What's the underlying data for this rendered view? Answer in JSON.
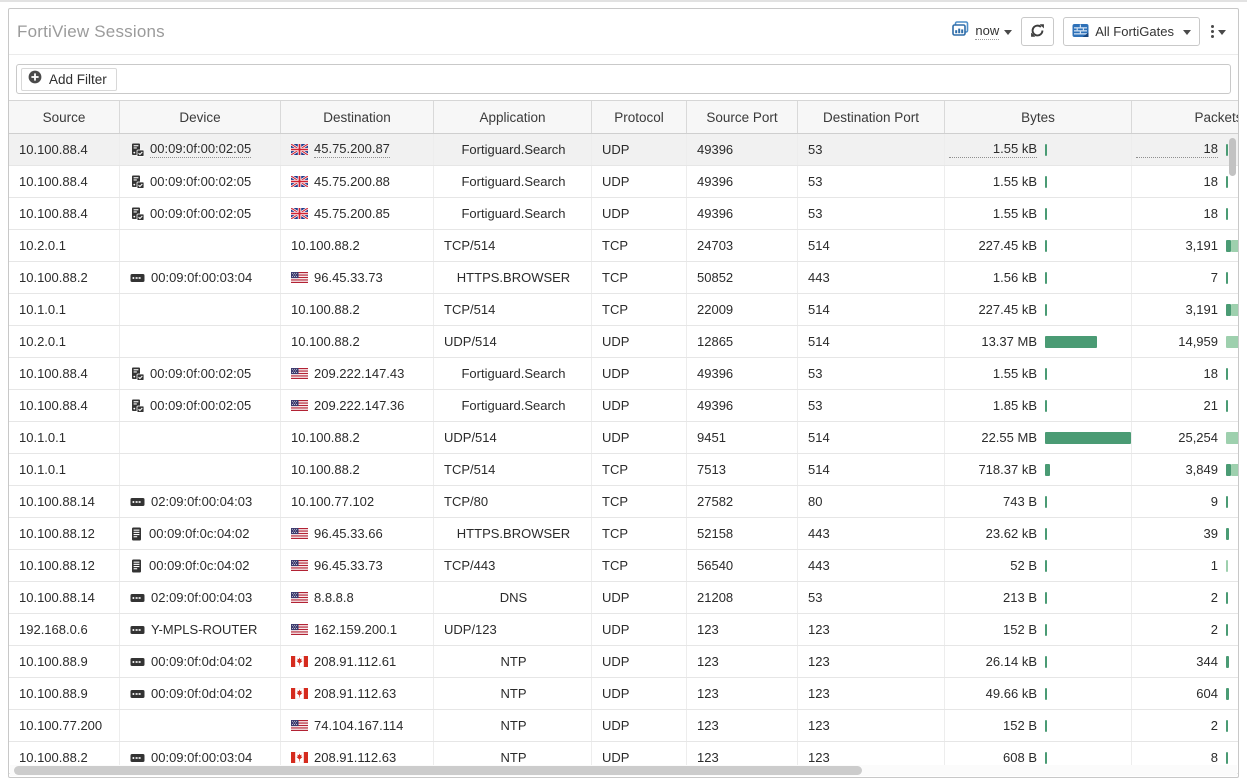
{
  "header": {
    "title": "FortiView Sessions",
    "time_label": "now",
    "fortigate_label": "All FortiGates"
  },
  "filter": {
    "add_label": "Add Filter"
  },
  "colors": {
    "bar_dark_green": "#4a9b74",
    "bar_light_green": "#9ed0ae",
    "accent_blue": "#3a77b8",
    "title_gray": "#9b9b9b"
  },
  "table": {
    "columns": [
      "Source",
      "Device",
      "Destination",
      "Application",
      "Protocol",
      "Source Port",
      "Destination Port",
      "Bytes",
      "Packets"
    ],
    "rows": [
      {
        "source": "10.100.88.4",
        "device_icon": "server-check-icon",
        "device": "00:09:0f:00:02:05",
        "flag": "uk-flag-icon",
        "destination": "45.75.200.87",
        "application": "Fortiguard.Search",
        "app_align": "center",
        "protocol": "UDP",
        "source_port": "49396",
        "dest_port": "53",
        "bytes": "1.55 kB",
        "bytes_bar": 2,
        "packets": "18",
        "packets_bar": {
          "dark": 2,
          "light": 0
        },
        "highlight": true
      },
      {
        "source": "10.100.88.4",
        "device_icon": "server-check-icon",
        "device": "00:09:0f:00:02:05",
        "flag": "uk-flag-icon",
        "destination": "45.75.200.88",
        "application": "Fortiguard.Search",
        "app_align": "center",
        "protocol": "UDP",
        "source_port": "49396",
        "dest_port": "53",
        "bytes": "1.55 kB",
        "bytes_bar": 2,
        "packets": "18",
        "packets_bar": {
          "dark": 2,
          "light": 0
        },
        "highlight": false
      },
      {
        "source": "10.100.88.4",
        "device_icon": "server-check-icon",
        "device": "00:09:0f:00:02:05",
        "flag": "uk-flag-icon",
        "destination": "45.75.200.85",
        "application": "Fortiguard.Search",
        "app_align": "center",
        "protocol": "UDP",
        "source_port": "49396",
        "dest_port": "53",
        "bytes": "1.55 kB",
        "bytes_bar": 2,
        "packets": "18",
        "packets_bar": {
          "dark": 2,
          "light": 0
        },
        "highlight": false
      },
      {
        "source": "10.2.0.1",
        "device_icon": "",
        "device": "",
        "flag": "",
        "destination": "10.100.88.2",
        "application": "TCP/514",
        "app_align": "left",
        "protocol": "TCP",
        "source_port": "24703",
        "dest_port": "514",
        "bytes": "227.45 kB",
        "bytes_bar": 2,
        "packets": "3,191",
        "packets_bar": {
          "dark": 5,
          "light": 9
        },
        "highlight": false
      },
      {
        "source": "10.100.88.2",
        "device_icon": "router-icon",
        "device": "00:09:0f:00:03:04",
        "flag": "us-flag-icon",
        "destination": "96.45.33.73",
        "application": "HTTPS.BROWSER",
        "app_align": "center",
        "protocol": "TCP",
        "source_port": "50852",
        "dest_port": "443",
        "bytes": "1.56 kB",
        "bytes_bar": 2,
        "packets": "7",
        "packets_bar": {
          "dark": 2,
          "light": 0
        },
        "highlight": false
      },
      {
        "source": "10.1.0.1",
        "device_icon": "",
        "device": "",
        "flag": "",
        "destination": "10.100.88.2",
        "application": "TCP/514",
        "app_align": "left",
        "protocol": "TCP",
        "source_port": "22009",
        "dest_port": "514",
        "bytes": "227.45 kB",
        "bytes_bar": 2,
        "packets": "3,191",
        "packets_bar": {
          "dark": 5,
          "light": 9
        },
        "highlight": false
      },
      {
        "source": "10.2.0.1",
        "device_icon": "",
        "device": "",
        "flag": "",
        "destination": "10.100.88.2",
        "application": "UDP/514",
        "app_align": "left",
        "protocol": "UDP",
        "source_port": "12865",
        "dest_port": "514",
        "bytes": "13.37 MB",
        "bytes_bar": 52,
        "packets": "14,959",
        "packets_bar": {
          "dark": 0,
          "light": 24
        },
        "highlight": false
      },
      {
        "source": "10.100.88.4",
        "device_icon": "server-check-icon",
        "device": "00:09:0f:00:02:05",
        "flag": "us-flag-icon",
        "destination": "209.222.147.43",
        "application": "Fortiguard.Search",
        "app_align": "center",
        "protocol": "UDP",
        "source_port": "49396",
        "dest_port": "53",
        "bytes": "1.55 kB",
        "bytes_bar": 2,
        "packets": "18",
        "packets_bar": {
          "dark": 2,
          "light": 0
        },
        "highlight": false
      },
      {
        "source": "10.100.88.4",
        "device_icon": "server-check-icon",
        "device": "00:09:0f:00:02:05",
        "flag": "us-flag-icon",
        "destination": "209.222.147.36",
        "application": "Fortiguard.Search",
        "app_align": "center",
        "protocol": "UDP",
        "source_port": "49396",
        "dest_port": "53",
        "bytes": "1.85 kB",
        "bytes_bar": 2,
        "packets": "21",
        "packets_bar": {
          "dark": 2,
          "light": 0
        },
        "highlight": false
      },
      {
        "source": "10.1.0.1",
        "device_icon": "",
        "device": "",
        "flag": "",
        "destination": "10.100.88.2",
        "application": "UDP/514",
        "app_align": "left",
        "protocol": "UDP",
        "source_port": "9451",
        "dest_port": "514",
        "bytes": "22.55 MB",
        "bytes_bar": 86,
        "packets": "25,254",
        "packets_bar": {
          "dark": 0,
          "light": 28
        },
        "highlight": false
      },
      {
        "source": "10.1.0.1",
        "device_icon": "",
        "device": "",
        "flag": "",
        "destination": "10.100.88.2",
        "application": "TCP/514",
        "app_align": "left",
        "protocol": "TCP",
        "source_port": "7513",
        "dest_port": "514",
        "bytes": "718.37 kB",
        "bytes_bar": 5,
        "packets": "3,849",
        "packets_bar": {
          "dark": 5,
          "light": 11
        },
        "highlight": false
      },
      {
        "source": "10.100.88.14",
        "device_icon": "router-icon",
        "device": "02:09:0f:00:04:03",
        "flag": "",
        "destination": "10.100.77.102",
        "application": "TCP/80",
        "app_align": "left",
        "protocol": "TCP",
        "source_port": "27582",
        "dest_port": "80",
        "bytes": "743 B",
        "bytes_bar": 2,
        "packets": "9",
        "packets_bar": {
          "dark": 2,
          "light": 0
        },
        "highlight": false
      },
      {
        "source": "10.100.88.12",
        "device_icon": "tablet-icon",
        "device": "00:09:0f:0c:04:02",
        "flag": "us-flag-icon",
        "destination": "96.45.33.66",
        "application": "HTTPS.BROWSER",
        "app_align": "center",
        "protocol": "TCP",
        "source_port": "52158",
        "dest_port": "443",
        "bytes": "23.62 kB",
        "bytes_bar": 2,
        "packets": "39",
        "packets_bar": {
          "dark": 3,
          "light": 0
        },
        "highlight": false
      },
      {
        "source": "10.100.88.12",
        "device_icon": "tablet-icon",
        "device": "00:09:0f:0c:04:02",
        "flag": "us-flag-icon",
        "destination": "96.45.33.73",
        "application": "TCP/443",
        "app_align": "left",
        "protocol": "TCP",
        "source_port": "56540",
        "dest_port": "443",
        "bytes": "52 B",
        "bytes_bar": 2,
        "packets": "1",
        "packets_bar": {
          "dark": 0,
          "light": 2
        },
        "highlight": false
      },
      {
        "source": "10.100.88.14",
        "device_icon": "router-icon",
        "device": "02:09:0f:00:04:03",
        "flag": "us-flag-icon",
        "destination": "8.8.8.8",
        "application": "DNS",
        "app_align": "center",
        "protocol": "UDP",
        "source_port": "21208",
        "dest_port": "53",
        "bytes": "213 B",
        "bytes_bar": 2,
        "packets": "2",
        "packets_bar": {
          "dark": 2,
          "light": 0
        },
        "highlight": false
      },
      {
        "source": "192.168.0.6",
        "device_icon": "router-icon",
        "device": "Y-MPLS-ROUTER",
        "flag": "us-flag-icon",
        "destination": "162.159.200.1",
        "application": "UDP/123",
        "app_align": "left",
        "protocol": "UDP",
        "source_port": "123",
        "dest_port": "123",
        "bytes": "152 B",
        "bytes_bar": 2,
        "packets": "2",
        "packets_bar": {
          "dark": 2,
          "light": 0
        },
        "highlight": false
      },
      {
        "source": "10.100.88.9",
        "device_icon": "router-icon",
        "device": "00:09:0f:0d:04:02",
        "flag": "ca-flag-icon",
        "destination": "208.91.112.61",
        "application": "NTP",
        "app_align": "center",
        "protocol": "UDP",
        "source_port": "123",
        "dest_port": "123",
        "bytes": "26.14 kB",
        "bytes_bar": 2,
        "packets": "344",
        "packets_bar": {
          "dark": 3,
          "light": 0
        },
        "highlight": false
      },
      {
        "source": "10.100.88.9",
        "device_icon": "router-icon",
        "device": "00:09:0f:0d:04:02",
        "flag": "ca-flag-icon",
        "destination": "208.91.112.63",
        "application": "NTP",
        "app_align": "center",
        "protocol": "UDP",
        "source_port": "123",
        "dest_port": "123",
        "bytes": "49.66 kB",
        "bytes_bar": 2,
        "packets": "604",
        "packets_bar": {
          "dark": 3,
          "light": 0
        },
        "highlight": false
      },
      {
        "source": "10.100.77.200",
        "device_icon": "",
        "device": "",
        "flag": "us-flag-icon",
        "destination": "74.104.167.114",
        "application": "NTP",
        "app_align": "center",
        "protocol": "UDP",
        "source_port": "123",
        "dest_port": "123",
        "bytes": "152 B",
        "bytes_bar": 2,
        "packets": "2",
        "packets_bar": {
          "dark": 2,
          "light": 0
        },
        "highlight": false
      },
      {
        "source": "10.100.88.2",
        "device_icon": "router-icon",
        "device": "00:09:0f:00:03:04",
        "flag": "ca-flag-icon",
        "destination": "208.91.112.63",
        "application": "NTP",
        "app_align": "center",
        "protocol": "UDP",
        "source_port": "123",
        "dest_port": "123",
        "bytes": "608 B",
        "bytes_bar": 2,
        "packets": "8",
        "packets_bar": {
          "dark": 2,
          "light": 0
        },
        "highlight": false
      }
    ]
  }
}
